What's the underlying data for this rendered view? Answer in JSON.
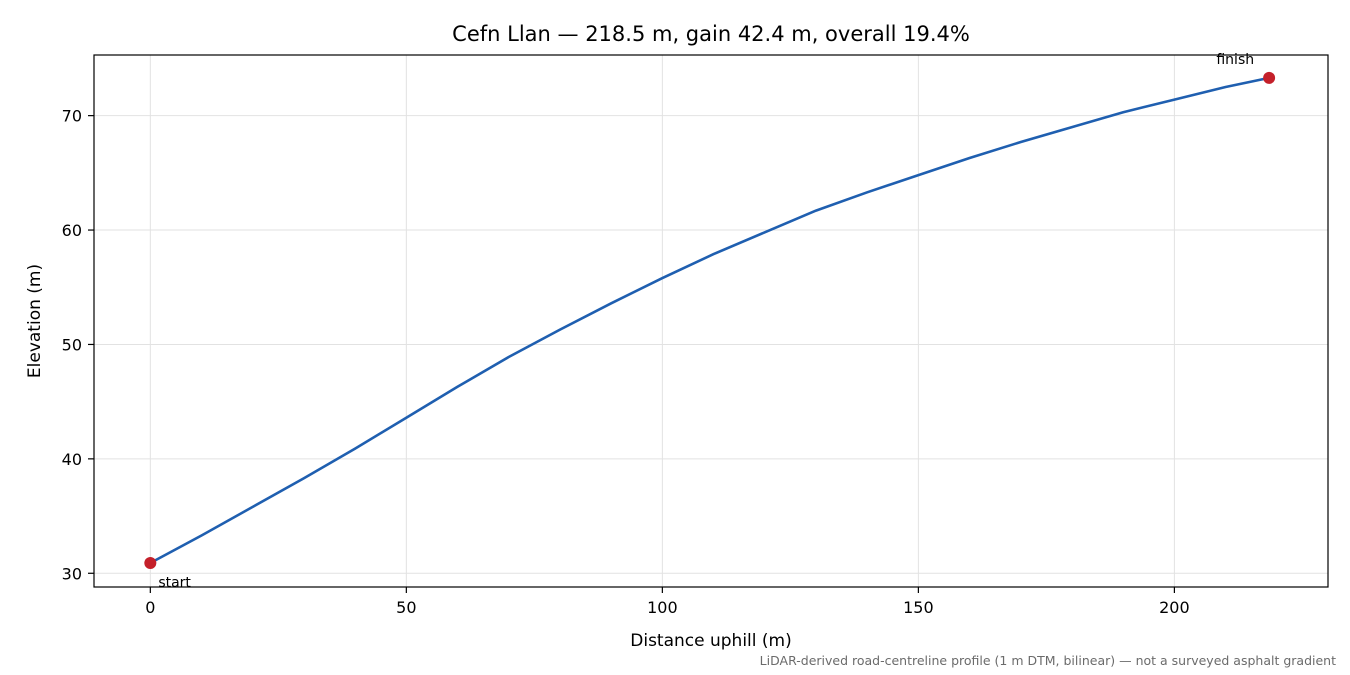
{
  "chart_data": {
    "type": "line",
    "title": "Cefn Llan — 218.5 m, gain 42.4 m, overall 19.4%",
    "xlabel": "Distance uphill (m)",
    "ylabel": "Elevation (m)",
    "xlim": [
      -11,
      230
    ],
    "ylim": [
      28.8,
      75.3
    ],
    "xticks": [
      0,
      50,
      100,
      150,
      200
    ],
    "yticks": [
      30,
      40,
      50,
      60,
      70
    ],
    "grid": true,
    "series": [
      {
        "color": "#1f5fb0",
        "x": [
          0,
          10,
          20,
          30,
          40,
          50,
          60,
          70,
          80,
          90,
          100,
          110,
          120,
          130,
          140,
          150,
          160,
          170,
          180,
          190,
          200,
          210,
          218.5
        ],
        "y": [
          30.9,
          33.3,
          35.8,
          38.3,
          40.9,
          43.6,
          46.3,
          48.9,
          51.3,
          53.6,
          55.8,
          57.9,
          59.8,
          61.7,
          63.3,
          64.8,
          66.3,
          67.7,
          69.0,
          70.3,
          71.4,
          72.5,
          73.3
        ]
      }
    ],
    "markers": [
      {
        "x": 0,
        "y": 30.9,
        "label": "start",
        "color": "#c4202a"
      },
      {
        "x": 218.5,
        "y": 73.3,
        "label": "finish",
        "color": "#c4202a"
      }
    ],
    "footnote": "LiDAR-derived road-centreline profile (1 m DTM, bilinear) — not a surveyed asphalt gradient"
  }
}
